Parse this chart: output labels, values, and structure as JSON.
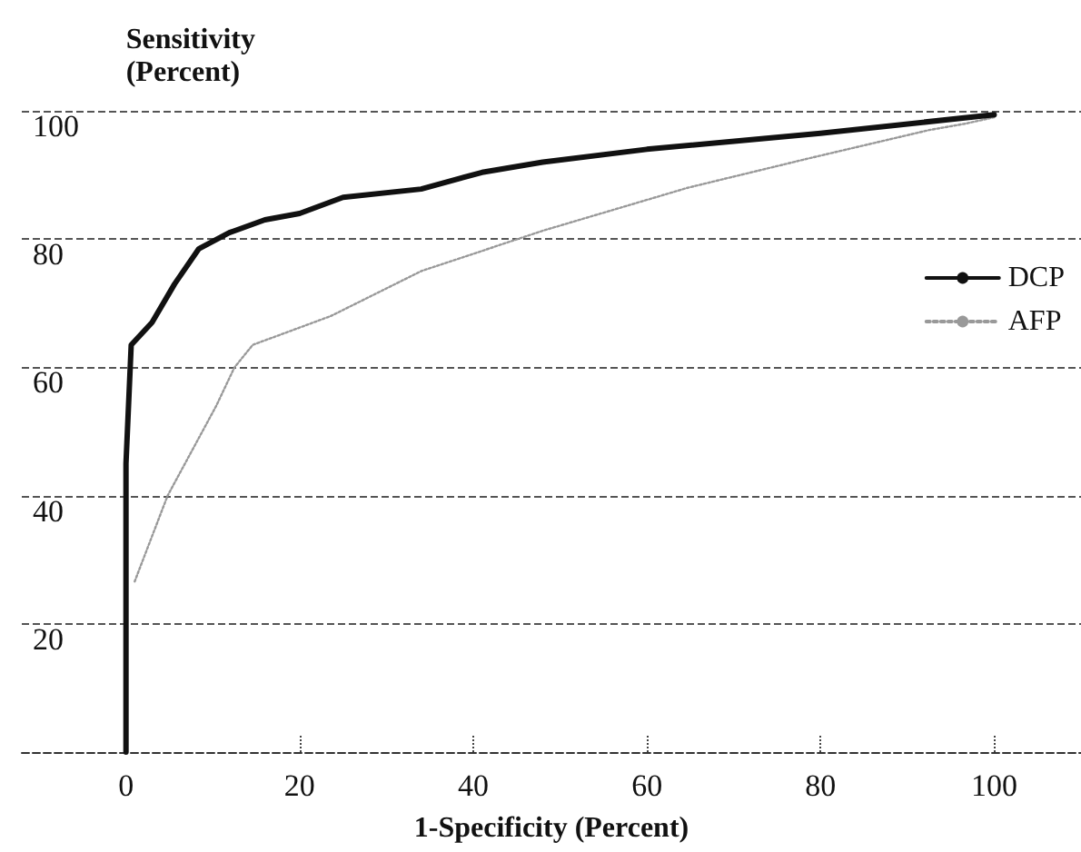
{
  "chart_data": {
    "type": "line",
    "ylabel": "Sensitivity\n(Percent)",
    "xlabel": "1-Specificity (Percent)",
    "xlim": [
      -12,
      110
    ],
    "xticks": [
      0,
      20,
      40,
      60,
      80,
      100
    ],
    "ylim": [
      0,
      100
    ],
    "yticks": [
      20,
      40,
      60,
      80,
      100
    ],
    "grid": "y",
    "legend": "right",
    "marker": "none",
    "series": [
      {
        "name": "DCP",
        "color": "#111111",
        "line_style": "solid",
        "x": [
          0,
          0,
          0.6,
          3,
          5.6,
          8.4,
          11.9,
          16,
          20,
          25,
          34,
          41,
          48,
          60,
          80,
          100
        ],
        "values": [
          0,
          45,
          63.5,
          67,
          73,
          78.5,
          81,
          83,
          84,
          86.5,
          87.8,
          90.4,
          92,
          94,
          96.5,
          99.4
        ]
      },
      {
        "name": "AFP",
        "color": "#999999",
        "line_style": "dotted",
        "x": [
          1,
          4.8,
          10.4,
          12.5,
          14.6,
          23.6,
          34,
          48,
          64.7,
          78.7,
          92.5,
          96.7,
          100
        ],
        "values": [
          26.6,
          40,
          54,
          60,
          63.5,
          68,
          75,
          81.3,
          88,
          92.6,
          97,
          98,
          99
        ]
      }
    ]
  }
}
